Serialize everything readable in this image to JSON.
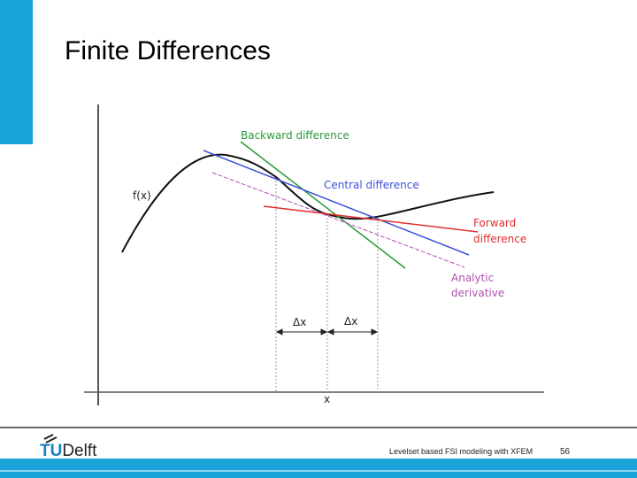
{
  "slide": {
    "title": "Finite Differences"
  },
  "figure": {
    "backward": "Backward difference",
    "central": "Central difference",
    "forward": [
      "Forward",
      "difference"
    ],
    "analytic": [
      "Analytic",
      "derivative"
    ],
    "fx": "f(x)",
    "dx_left": "Δx",
    "dx_right": "Δx",
    "x": "x"
  },
  "footer": {
    "logo_tu": "TU",
    "logo_delft": "Delft",
    "caption": "Levelset based FSI modeling with XFEM",
    "page": "56"
  }
}
